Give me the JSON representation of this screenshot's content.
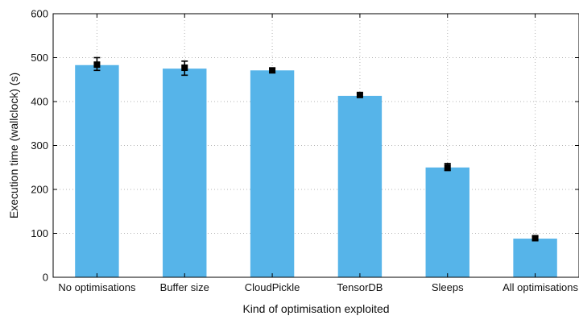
{
  "chart_data": {
    "type": "bar",
    "xlabel": "Kind of optimisation exploited",
    "ylabel": "Execution time (wallclock) (s)",
    "categories": [
      "No optimisations",
      "Buffer size",
      "CloudPickle",
      "TensorDB",
      "Sleeps",
      "All optimisations"
    ],
    "values": [
      483,
      475,
      471,
      413,
      250,
      88
    ],
    "error_center": [
      484,
      477,
      471,
      415,
      250,
      89
    ],
    "error_low": [
      471,
      460,
      466,
      411,
      243,
      85
    ],
    "error_high": [
      500,
      492,
      476,
      419,
      259,
      93
    ],
    "ylim": [
      0,
      600
    ],
    "yticks": [
      0,
      100,
      200,
      300,
      400,
      500,
      600
    ],
    "grid": true,
    "bar_color": "#56B4E9",
    "error_color": "#000000"
  }
}
